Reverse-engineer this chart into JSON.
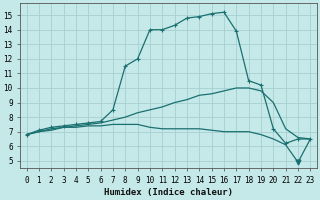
{
  "xlabel": "Humidex (Indice chaleur)",
  "bg_color": "#c5e8e8",
  "line_color": "#1a7070",
  "grid_color": "#a8d0d0",
  "xlim": [
    -0.5,
    23.5
  ],
  "ylim": [
    4.5,
    15.8
  ],
  "xticks": [
    0,
    1,
    2,
    3,
    4,
    5,
    6,
    7,
    8,
    9,
    10,
    11,
    12,
    13,
    14,
    15,
    16,
    17,
    18,
    19,
    20,
    21,
    22,
    23
  ],
  "yticks": [
    5,
    6,
    7,
    8,
    9,
    10,
    11,
    12,
    13,
    14,
    15
  ],
  "line1_x": [
    0,
    1,
    2,
    3,
    4,
    5,
    6,
    7,
    8,
    9,
    10,
    11,
    12,
    13,
    14,
    15,
    16,
    17,
    18,
    19,
    20,
    21,
    22,
    23
  ],
  "line1_y": [
    6.8,
    7.1,
    7.3,
    7.4,
    7.5,
    7.6,
    7.7,
    8.5,
    11.5,
    12.0,
    14.0,
    14.0,
    14.3,
    14.8,
    14.9,
    15.1,
    15.2,
    13.9,
    10.5,
    10.2,
    7.2,
    6.2,
    6.5,
    6.5
  ],
  "line2_x": [
    0,
    1,
    2,
    3,
    4,
    5,
    6,
    7,
    8,
    9,
    10,
    11,
    12,
    13,
    14,
    15,
    16,
    17,
    18,
    19,
    20,
    21,
    22,
    23
  ],
  "line2_y": [
    6.8,
    7.0,
    7.2,
    7.3,
    7.4,
    7.5,
    7.6,
    7.8,
    8.0,
    8.3,
    8.5,
    8.7,
    9.0,
    9.2,
    9.5,
    9.6,
    9.8,
    10.0,
    10.0,
    9.8,
    9.0,
    7.2,
    6.6,
    6.5
  ],
  "line3_x": [
    0,
    1,
    2,
    3,
    4,
    5,
    6,
    7,
    8,
    9,
    10,
    11,
    12,
    13,
    14,
    15,
    16,
    17,
    18,
    19,
    20,
    21,
    22,
    23
  ],
  "line3_y": [
    6.8,
    7.0,
    7.1,
    7.3,
    7.3,
    7.4,
    7.4,
    7.5,
    7.5,
    7.5,
    7.3,
    7.2,
    7.2,
    7.2,
    7.2,
    7.1,
    7.0,
    7.0,
    7.0,
    6.8,
    6.5,
    6.1,
    4.9,
    6.5
  ]
}
